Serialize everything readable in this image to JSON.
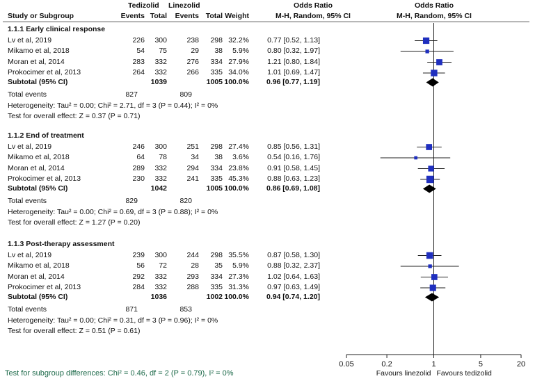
{
  "headers": {
    "group1": "Tedizolid",
    "group2": "Linezolid",
    "odds_ratio_text": "Odds Ratio",
    "odds_ratio_plot": "Odds Ratio",
    "study": "Study or Subgroup",
    "events1": "Events",
    "total1": "Total",
    "events2": "Events",
    "total2": "Total",
    "weight": "Weight",
    "method_text": "M-H, Random, 95% CI",
    "method_plot": "M-H, Random, 95% CI"
  },
  "subgroups": [
    {
      "title": "1.1.1 Early clinical response",
      "studies": [
        {
          "study": "Lv et al, 2019",
          "e1": "226",
          "t1": "300",
          "e2": "238",
          "t2": "298",
          "weight": "32.2%",
          "ci": "0.77 [0.52, 1.13]"
        },
        {
          "study": "Mikamo et al, 2018",
          "e1": "54",
          "t1": "75",
          "e2": "29",
          "t2": "38",
          "weight": "5.9%",
          "ci": "0.80 [0.32, 1.97]"
        },
        {
          "study": "Moran et al, 2014",
          "e1": "283",
          "t1": "332",
          "e2": "276",
          "t2": "334",
          "weight": "27.9%",
          "ci": "1.21 [0.80, 1.84]"
        },
        {
          "study": "Prokocimer et al, 2013",
          "e1": "264",
          "t1": "332",
          "e2": "266",
          "t2": "335",
          "weight": "34.0%",
          "ci": "1.01 [0.69, 1.47]"
        }
      ],
      "subtotal": {
        "label": "Subtotal (95% CI)",
        "t1": "1039",
        "t2": "1005",
        "weight": "100.0%",
        "ci": "0.96 [0.77, 1.19]"
      },
      "total_events": {
        "label": "Total events",
        "e1": "827",
        "e2": "809"
      },
      "heterogeneity": "Heterogeneity: Tau² = 0.00; Chi² = 2.71, df = 3 (P = 0.44); I² = 0%",
      "overall": "Test for overall effect: Z = 0.37 (P = 0.71)"
    },
    {
      "title": "1.1.2 End of treatment",
      "studies": [
        {
          "study": "Lv et al, 2019",
          "e1": "246",
          "t1": "300",
          "e2": "251",
          "t2": "298",
          "weight": "27.4%",
          "ci": "0.85 [0.56, 1.31]"
        },
        {
          "study": "Mikamo et al, 2018",
          "e1": "64",
          "t1": "78",
          "e2": "34",
          "t2": "38",
          "weight": "3.6%",
          "ci": "0.54 [0.16, 1.76]"
        },
        {
          "study": "Moran et al, 2014",
          "e1": "289",
          "t1": "332",
          "e2": "294",
          "t2": "334",
          "weight": "23.8%",
          "ci": "0.91 [0.58, 1.45]"
        },
        {
          "study": "Prokocimer et al, 2013",
          "e1": "230",
          "t1": "332",
          "e2": "241",
          "t2": "335",
          "weight": "45.3%",
          "ci": "0.88 [0.63, 1.23]"
        }
      ],
      "subtotal": {
        "label": "Subtotal (95% CI)",
        "t1": "1042",
        "t2": "1005",
        "weight": "100.0%",
        "ci": "0.86 [0.69, 1.08]"
      },
      "total_events": {
        "label": "Total events",
        "e1": "829",
        "e2": "820"
      },
      "heterogeneity": "Heterogeneity: Tau² = 0.00; Chi² = 0.69, df = 3 (P = 0.88); I² = 0%",
      "overall": "Test for overall effect: Z = 1.27 (P = 0.20)"
    },
    {
      "title": "1.1.3 Post-therapy assessment",
      "studies": [
        {
          "study": "Lv et al, 2019",
          "e1": "239",
          "t1": "300",
          "e2": "244",
          "t2": "298",
          "weight": "35.5%",
          "ci": "0.87 [0.58, 1.30]"
        },
        {
          "study": "Mikamo et al, 2018",
          "e1": "56",
          "t1": "72",
          "e2": "28",
          "t2": "35",
          "weight": "5.9%",
          "ci": "0.88 [0.32, 2.37]"
        },
        {
          "study": "Moran et al, 2014",
          "e1": "292",
          "t1": "332",
          "e2": "293",
          "t2": "334",
          "weight": "27.3%",
          "ci": "1.02 [0.64, 1.63]"
        },
        {
          "study": "Prokocimer et al, 2013",
          "e1": "284",
          "t1": "332",
          "e2": "288",
          "t2": "335",
          "weight": "31.3%",
          "ci": "0.97 [0.63, 1.49]"
        }
      ],
      "subtotal": {
        "label": "Subtotal (95% CI)",
        "t1": "1036",
        "t2": "1002",
        "weight": "100.0%",
        "ci": "0.94 [0.74, 1.20]"
      },
      "total_events": {
        "label": "Total events",
        "e1": "871",
        "e2": "853"
      },
      "heterogeneity": "Heterogeneity: Tau² = 0.00; Chi² = 0.31, df = 3 (P = 0.96); I² = 0%",
      "overall": "Test for overall effect: Z = 0.51 (P = 0.61)"
    }
  ],
  "footer": "Test for subgroup differences: Chi² = 0.46, df = 2 (P = 0.79), I² = 0%",
  "chart_data": {
    "type": "scatter",
    "x_scale": "log",
    "x_ticks": [
      0.05,
      0.2,
      1,
      5,
      20
    ],
    "x_tick_labels": [
      "0.05",
      "0.2",
      "1",
      "5",
      "20"
    ],
    "xlim": [
      0.05,
      20
    ],
    "null_line": 1,
    "favours_left": "Favours linezolid",
    "favours_right": "Favours tedizolid",
    "colors": {
      "study": "#1f2fbf",
      "pooled": "#000000"
    },
    "subgroups": [
      {
        "studies": [
          {
            "or": 0.77,
            "lo": 0.52,
            "hi": 1.13,
            "weight": 32.2
          },
          {
            "or": 0.8,
            "lo": 0.32,
            "hi": 1.97,
            "weight": 5.9
          },
          {
            "or": 1.21,
            "lo": 0.8,
            "hi": 1.84,
            "weight": 27.9
          },
          {
            "or": 1.01,
            "lo": 0.69,
            "hi": 1.47,
            "weight": 34.0
          }
        ],
        "pooled": {
          "or": 0.96,
          "lo": 0.77,
          "hi": 1.19
        }
      },
      {
        "studies": [
          {
            "or": 0.85,
            "lo": 0.56,
            "hi": 1.31,
            "weight": 27.4
          },
          {
            "or": 0.54,
            "lo": 0.16,
            "hi": 1.76,
            "weight": 3.6
          },
          {
            "or": 0.91,
            "lo": 0.58,
            "hi": 1.45,
            "weight": 23.8
          },
          {
            "or": 0.88,
            "lo": 0.63,
            "hi": 1.23,
            "weight": 45.3
          }
        ],
        "pooled": {
          "or": 0.86,
          "lo": 0.69,
          "hi": 1.08
        }
      },
      {
        "studies": [
          {
            "or": 0.87,
            "lo": 0.58,
            "hi": 1.3,
            "weight": 35.5
          },
          {
            "or": 0.88,
            "lo": 0.32,
            "hi": 2.37,
            "weight": 5.9
          },
          {
            "or": 1.02,
            "lo": 0.64,
            "hi": 1.63,
            "weight": 27.3
          },
          {
            "or": 0.97,
            "lo": 0.63,
            "hi": 1.49,
            "weight": 31.3
          }
        ],
        "pooled": {
          "or": 0.94,
          "lo": 0.74,
          "hi": 1.2
        }
      }
    ]
  }
}
